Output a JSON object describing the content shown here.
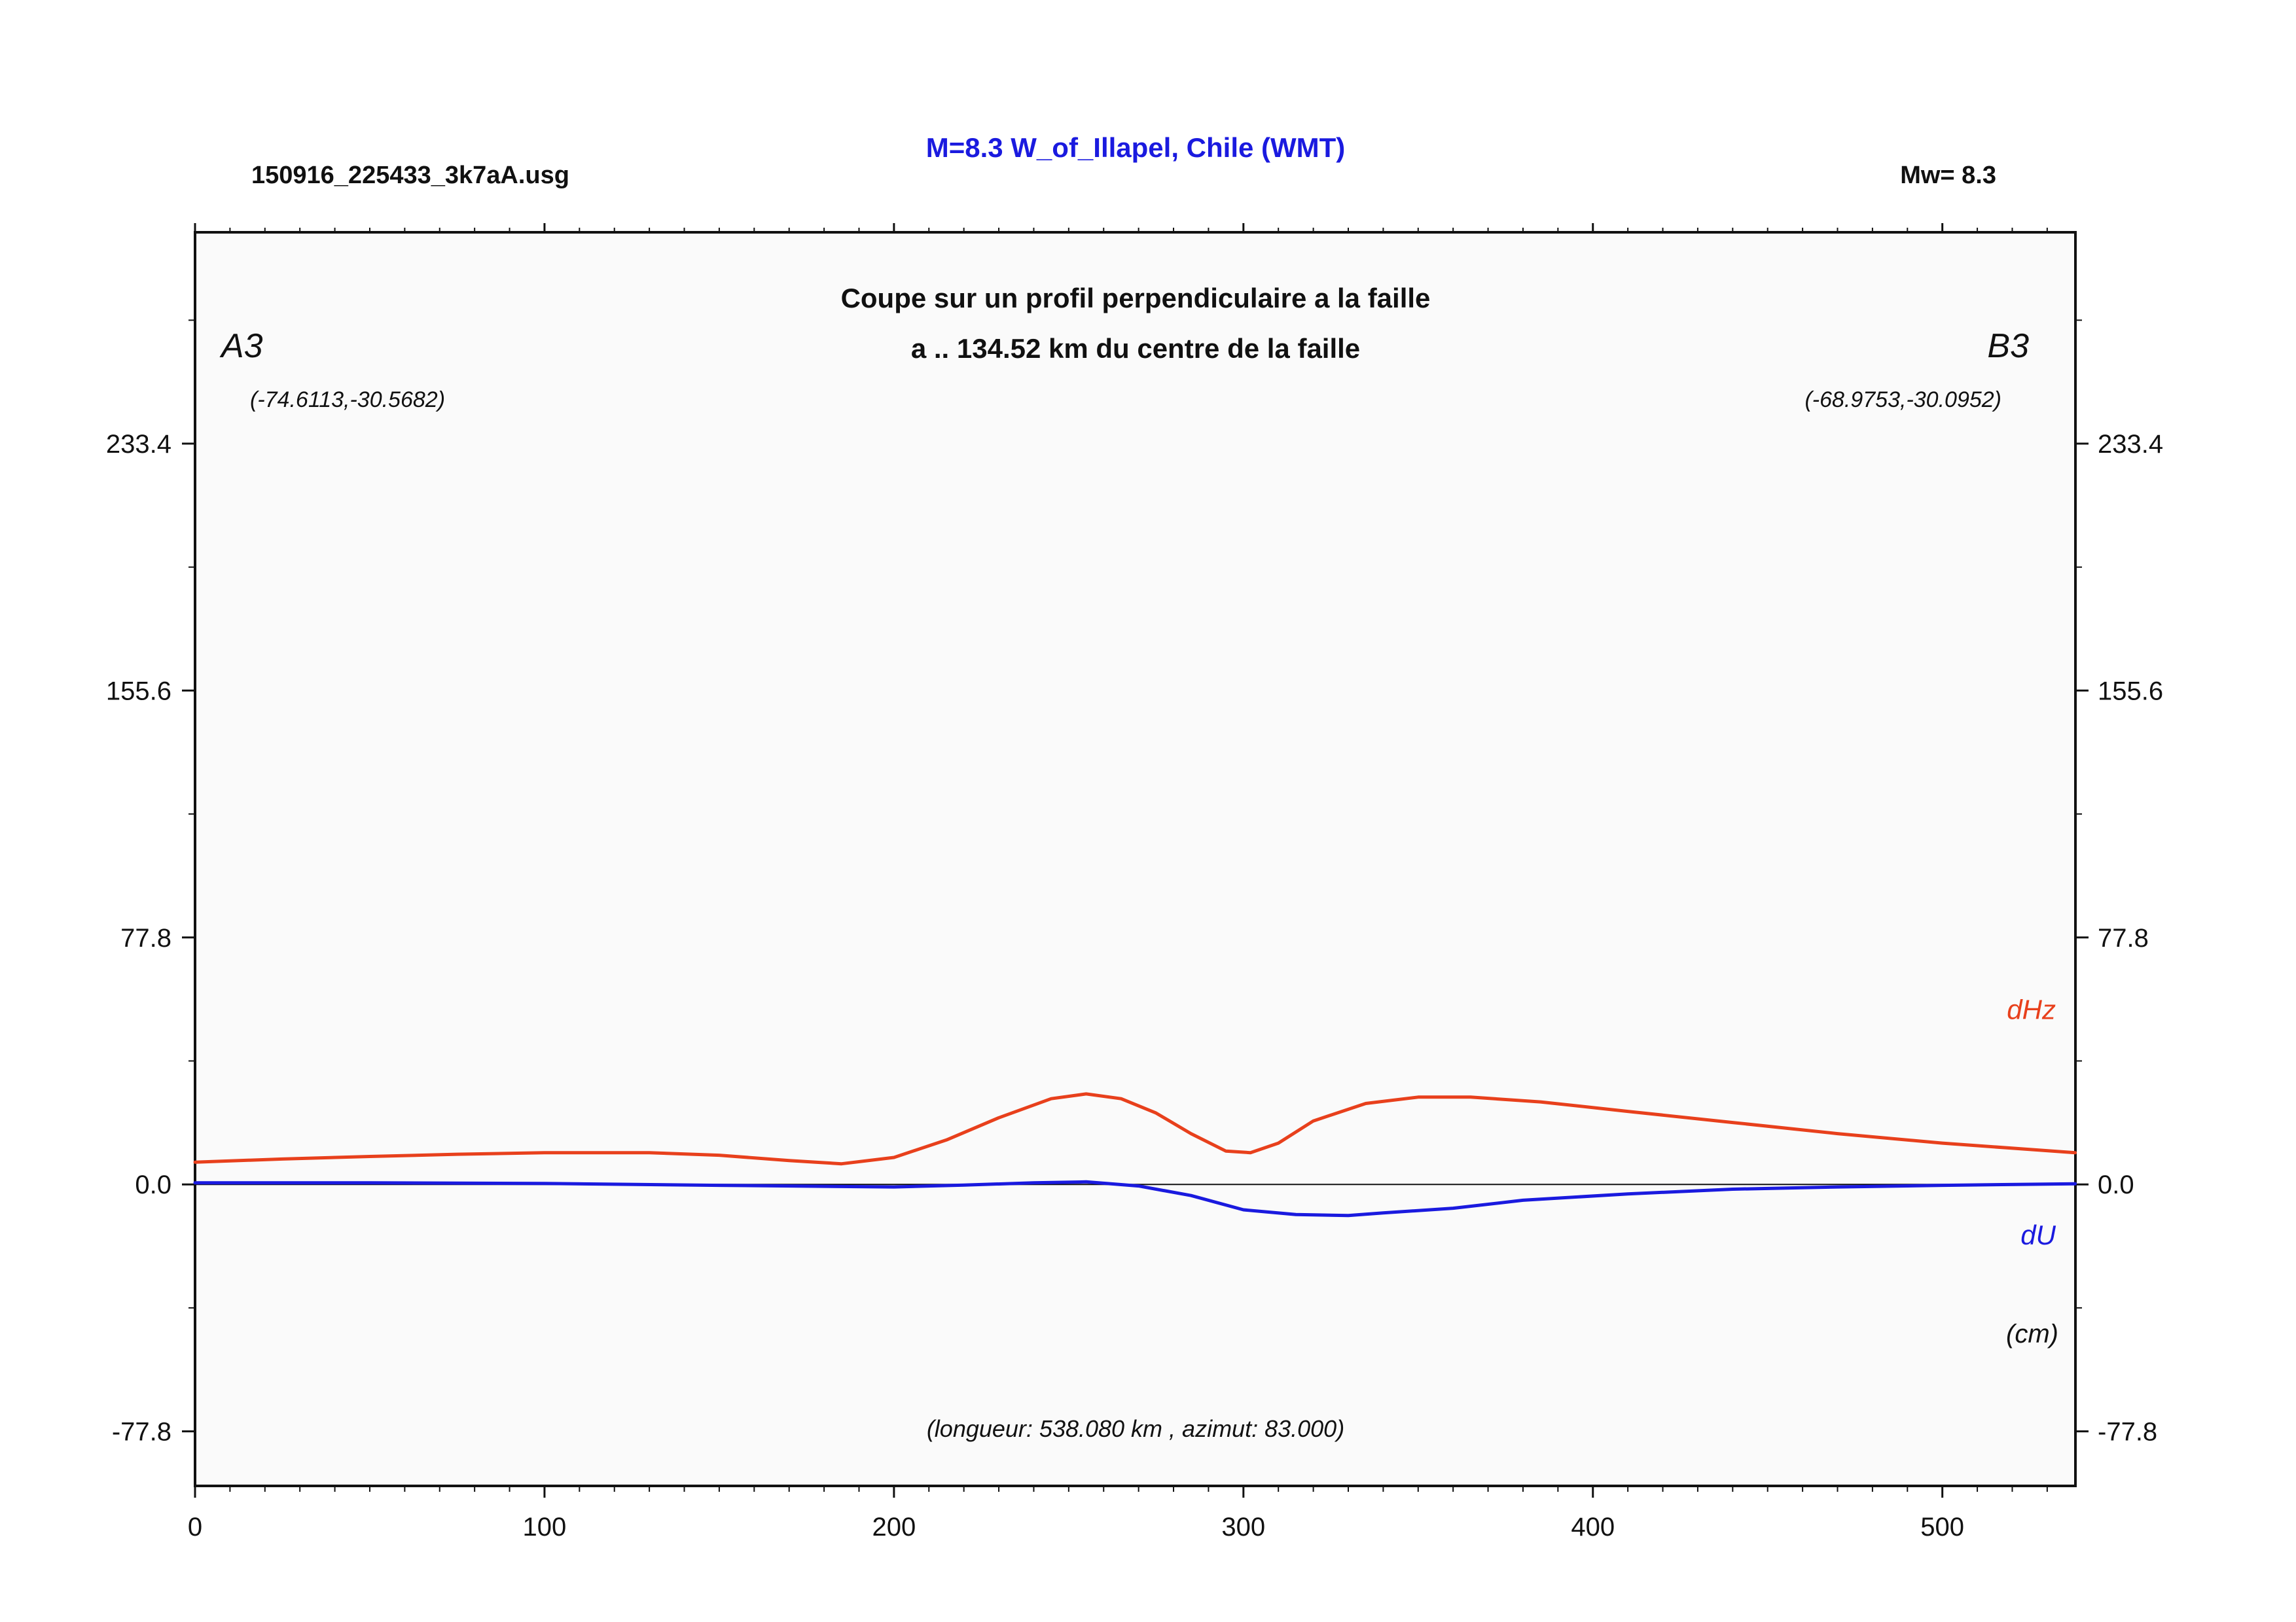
{
  "header": {
    "filename": "150916_225433_3k7aA.usg",
    "title": "M=8.3 W_of_Illapel, Chile (WMT)",
    "magnitude": "Mw= 8.3",
    "title_color": "#1a1adf"
  },
  "profile": {
    "subtitle_line1": "Coupe sur un profil perpendiculaire a la faille",
    "subtitle_line2": "a .. 134.52 km du centre de la faille",
    "start_label": "A3",
    "end_label": "B3",
    "start_coords": "(-74.6113,-30.5682)",
    "end_coords": "(-68.9753,-30.0952)",
    "length_note": "(longueur: 538.080 km , azimut: 83.000)",
    "unit_note": "(cm)"
  },
  "chart_data": {
    "type": "line",
    "xlim": [
      0,
      538.08
    ],
    "ylim": [
      -95,
      300
    ],
    "x_ticks": [
      0,
      100,
      200,
      300,
      400,
      500
    ],
    "x_tick_labels": [
      "0",
      "100",
      "200",
      "300",
      "400",
      "500"
    ],
    "y_ticks": [
      -77.8,
      0.0,
      77.8,
      155.6,
      233.4
    ],
    "y_tick_labels": [
      "-77.8",
      "0.0",
      "77.8",
      "155.6",
      "233.4"
    ],
    "zero_line": true,
    "series": [
      {
        "name": "dHz",
        "color": "#e8401c",
        "x": [
          0,
          25,
          50,
          75,
          100,
          130,
          150,
          170,
          185,
          200,
          215,
          230,
          245,
          255,
          265,
          275,
          285,
          295,
          302,
          310,
          320,
          335,
          350,
          365,
          385,
          410,
          440,
          470,
          500,
          525,
          538
        ],
        "y": [
          7.0,
          8.0,
          8.8,
          9.5,
          10.0,
          10.0,
          9.2,
          7.5,
          6.5,
          8.5,
          14.0,
          21.0,
          27.0,
          28.5,
          27.0,
          22.5,
          16.0,
          10.5,
          10.0,
          13.0,
          20.0,
          25.5,
          27.5,
          27.5,
          26.0,
          23.0,
          19.5,
          16.0,
          13.0,
          11.0,
          10.0
        ]
      },
      {
        "name": "dU",
        "color": "#1a1adf",
        "x": [
          0,
          50,
          100,
          150,
          200,
          220,
          240,
          255,
          270,
          285,
          300,
          315,
          330,
          340,
          360,
          380,
          410,
          440,
          470,
          500,
          538
        ],
        "y": [
          0.5,
          0.5,
          0.3,
          -0.3,
          -0.8,
          -0.2,
          0.5,
          0.8,
          -0.5,
          -3.5,
          -8.0,
          -9.5,
          -9.8,
          -9.0,
          -7.5,
          -5.0,
          -3.0,
          -1.5,
          -0.8,
          -0.3,
          0.2
        ]
      }
    ]
  }
}
